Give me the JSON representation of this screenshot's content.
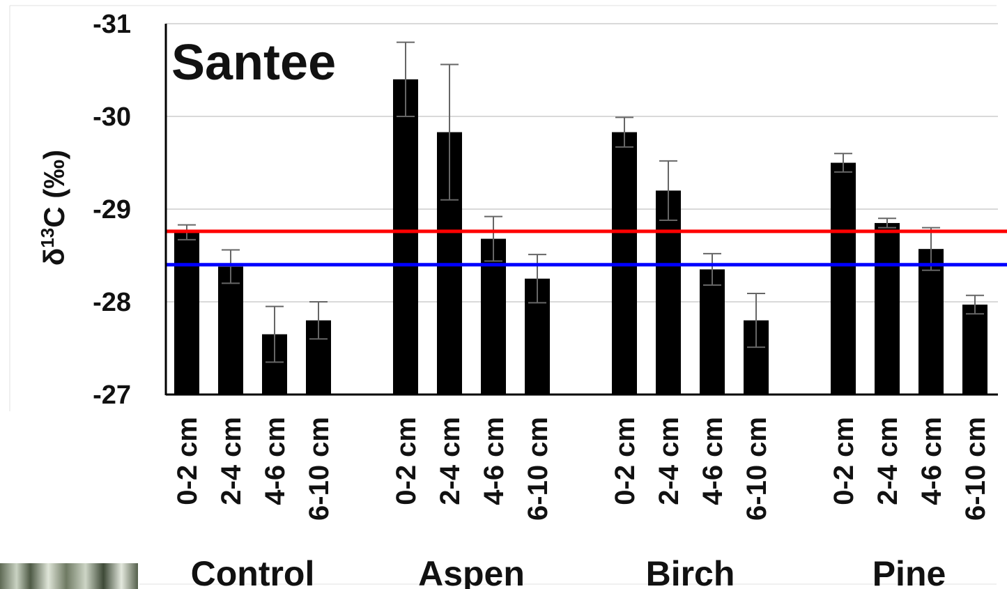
{
  "chart_data": {
    "type": "bar",
    "title": "Santee",
    "ylabel_main": "δ",
    "ylabel_sup": "13",
    "ylabel_rest": "C (‰)",
    "ylim": [
      -31,
      -27
    ],
    "y_inverted": true,
    "y_ticks": [
      -31,
      -30,
      -29,
      -28,
      -27
    ],
    "y_tick_labels": [
      "-31",
      "-30",
      "-29",
      "-28",
      "-27"
    ],
    "grid": true,
    "bar_color": "#000000",
    "groups": [
      {
        "name": "Control",
        "categories": [
          "0-2 cm",
          "2-4 cm",
          "4-6 cm",
          "6-10 cm"
        ],
        "values": [
          -28.75,
          -28.38,
          -27.65,
          -27.8
        ],
        "errors": [
          0.08,
          0.18,
          0.3,
          0.2
        ]
      },
      {
        "name": "Aspen",
        "categories": [
          "0-2 cm",
          "2-4 cm",
          "4-6 cm",
          "6-10 cm"
        ],
        "values": [
          -30.4,
          -29.83,
          -28.68,
          -28.25
        ],
        "errors": [
          0.4,
          0.73,
          0.24,
          0.26
        ]
      },
      {
        "name": "Birch",
        "categories": [
          "0-2 cm",
          "2-4 cm",
          "4-6 cm",
          "6-10 cm"
        ],
        "values": [
          -29.83,
          -29.2,
          -28.35,
          -27.8
        ],
        "errors": [
          0.16,
          0.32,
          0.17,
          0.29
        ]
      },
      {
        "name": "Pine",
        "categories": [
          "0-2 cm",
          "2-4 cm",
          "4-6 cm",
          "6-10 cm"
        ],
        "values": [
          -29.5,
          -28.85,
          -28.57,
          -27.97
        ],
        "errors": [
          0.1,
          0.05,
          0.23,
          0.1
        ]
      }
    ],
    "reference_lines": [
      {
        "value": -28.76,
        "color": "#ff0000"
      },
      {
        "value": -28.4,
        "color": "#0000ff"
      }
    ]
  }
}
